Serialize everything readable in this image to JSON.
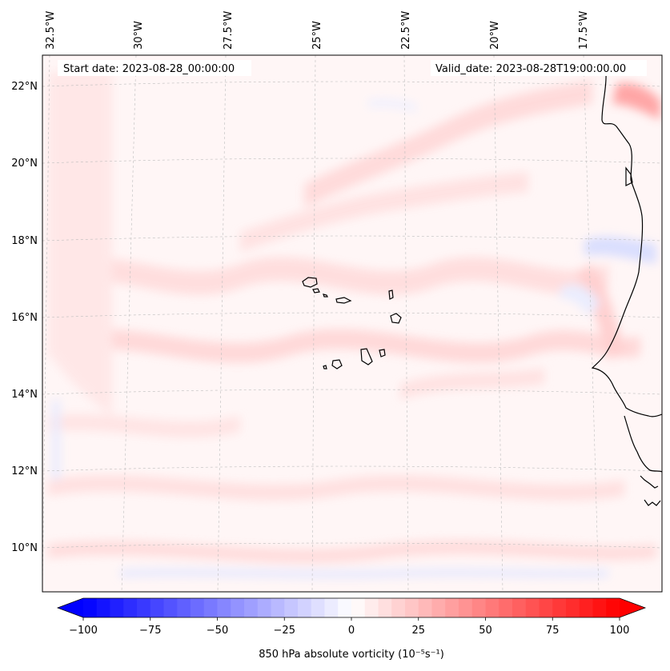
{
  "map": {
    "start_date_label": "Start date: 2023-08-28_00:00:00",
    "valid_date_label": "Valid_date: 2023-08-28T19:00:00.00",
    "lon_labels": [
      "32.5°W",
      "30°W",
      "27.5°W",
      "25°W",
      "22.5°W",
      "20°W",
      "17.5°W"
    ],
    "lat_labels": [
      "22°N",
      "20°N",
      "18°N",
      "16°N",
      "14°N",
      "12°N",
      "10°N"
    ],
    "gridlines": true,
    "coastline_color": "#000000"
  },
  "colorbar": {
    "label": "850 hPa absolute vorticity (10⁻⁵s⁻¹)",
    "tick_labels": [
      "−100",
      "−75",
      "−50",
      "−25",
      "0",
      "25",
      "50",
      "75",
      "100"
    ],
    "range": [
      -100,
      100
    ],
    "step": 5,
    "extend": "both",
    "colormap": "bwr",
    "color_min": "#0000ff",
    "color_mid": "#ffffff",
    "color_max": "#ff0000"
  }
}
